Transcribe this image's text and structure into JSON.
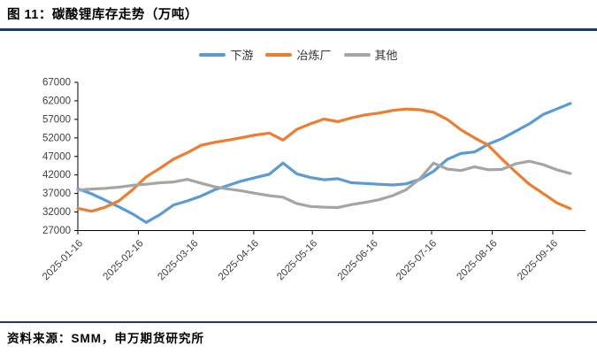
{
  "figure": {
    "title": "图 11：碳酸锂库存走势（万吨）",
    "source": "资料来源：SMM，申万期货研究所"
  },
  "colors": {
    "accent_rule": "#1F3864",
    "axis": "#000000",
    "tick_label": "#404040",
    "legend_text": "#333333",
    "downstream": "#5B9BD5",
    "smelter": "#ED7D31",
    "other": "#A5A5A5"
  },
  "chart_data": {
    "type": "line",
    "title": "碳酸锂库存走势（万吨）",
    "legend_position": "top",
    "grid": false,
    "ylim": [
      27000,
      67000
    ],
    "yticks": [
      27000,
      32000,
      37000,
      42000,
      47000,
      52000,
      57000,
      62000,
      67000
    ],
    "xtick_labels": [
      "2025-01-16",
      "2025-02-16",
      "2025-03-16",
      "2025-04-16",
      "2025-05-16",
      "2025-06-16",
      "2025-07-16",
      "2025-08-16",
      "2025-09-16"
    ],
    "x_axis_start": "2025-01-16",
    "x_axis_end": "2025-09-16",
    "x": [
      "2025-01-16",
      "2025-01-23",
      "2025-01-30",
      "2025-02-06",
      "2025-02-13",
      "2025-02-20",
      "2025-02-27",
      "2025-03-06",
      "2025-03-13",
      "2025-03-20",
      "2025-03-27",
      "2025-04-03",
      "2025-04-10",
      "2025-04-17",
      "2025-04-24",
      "2025-05-01",
      "2025-05-08",
      "2025-05-15",
      "2025-05-22",
      "2025-05-29",
      "2025-06-05",
      "2025-06-12",
      "2025-06-19",
      "2025-06-26",
      "2025-07-03",
      "2025-07-10",
      "2025-07-17",
      "2025-07-24",
      "2025-07-31",
      "2025-08-07",
      "2025-08-14",
      "2025-08-21",
      "2025-08-28",
      "2025-09-04",
      "2025-09-11",
      "2025-09-18",
      "2025-09-25"
    ],
    "series": [
      {
        "name": "下游",
        "id": "downstream",
        "color": "#5B9BD5",
        "values": [
          38300,
          36900,
          35200,
          33400,
          31500,
          29200,
          31300,
          33900,
          35000,
          36300,
          38000,
          39200,
          40400,
          41300,
          42200,
          45200,
          42300,
          41300,
          40700,
          41000,
          39900,
          39700,
          39500,
          39300,
          39600,
          40800,
          43000,
          46200,
          47800,
          48200,
          50300,
          51800,
          53800,
          55800,
          58300,
          59800,
          61300
        ]
      },
      {
        "name": "冶炼厂",
        "id": "smelter",
        "color": "#ED7D31",
        "values": [
          33000,
          32200,
          33300,
          35000,
          38000,
          41500,
          43800,
          46300,
          48000,
          50000,
          50800,
          51400,
          52100,
          52800,
          53300,
          51400,
          54300,
          55800,
          57100,
          56400,
          57400,
          58200,
          58700,
          59400,
          59800,
          59600,
          58900,
          57000,
          54200,
          52000,
          50000,
          46300,
          42800,
          39500,
          37000,
          34500,
          32900
        ]
      },
      {
        "name": "其他",
        "id": "other",
        "color": "#A5A5A5",
        "values": [
          37900,
          38200,
          38400,
          38700,
          39200,
          39500,
          39900,
          40100,
          40800,
          39800,
          38800,
          38200,
          37700,
          37000,
          36400,
          36000,
          34300,
          33500,
          33300,
          33200,
          34000,
          34600,
          35300,
          36400,
          38000,
          41000,
          45200,
          43600,
          43200,
          44200,
          43400,
          43500,
          45000,
          45700,
          44800,
          43400,
          42400
        ]
      }
    ]
  }
}
